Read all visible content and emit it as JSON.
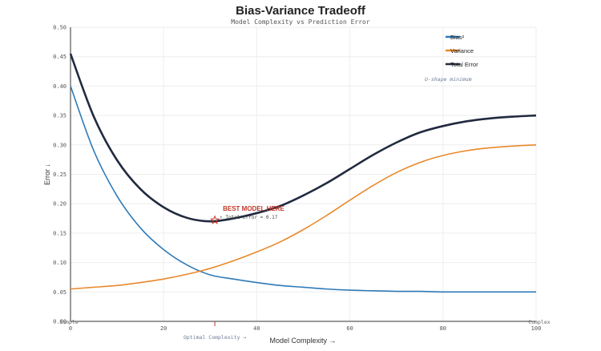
{
  "chart_data": {
    "type": "line",
    "title": "Bias-Variance Tradeoff",
    "subtitle": "Model Complexity vs Prediction Error",
    "xlabel": "Model Complexity →",
    "ylabel": "Error ↓",
    "xlim": [
      0,
      100
    ],
    "ylim": [
      0,
      0.5
    ],
    "xticks": [
      0,
      20,
      40,
      60,
      80,
      100
    ],
    "yticks": [
      0.0,
      0.05,
      0.1,
      0.15,
      0.2,
      0.25,
      0.3,
      0.35,
      0.4,
      0.45,
      0.5
    ],
    "xtick_labels": [
      "0",
      "20",
      "40",
      "60",
      "80",
      "100"
    ],
    "ytick_labels": [
      "0.00",
      "0.05",
      "0.10",
      "0.15",
      "0.20",
      "0.25",
      "0.30",
      "0.35",
      "0.40",
      "0.45",
      "0.50"
    ],
    "grid": true,
    "legend_position": "top-right",
    "series": [
      {
        "name": "Bias²",
        "color": "#2e7ab8",
        "x": [
          0,
          5,
          10,
          15,
          20,
          25,
          30,
          35,
          40,
          45,
          50,
          55,
          60,
          65,
          70,
          75,
          80,
          85,
          90,
          95,
          100
        ],
        "y": [
          0.4,
          0.29,
          0.213,
          0.159,
          0.122,
          0.096,
          0.079,
          0.072,
          0.066,
          0.061,
          0.058,
          0.055,
          0.053,
          0.052,
          0.051,
          0.051,
          0.05,
          0.05,
          0.05,
          0.05,
          0.05
        ]
      },
      {
        "name": "Variance",
        "color": "#e8892b",
        "x": [
          0,
          5,
          10,
          15,
          20,
          25,
          30,
          35,
          40,
          45,
          50,
          55,
          60,
          65,
          70,
          75,
          80,
          85,
          90,
          95,
          100
        ],
        "y": [
          0.055,
          0.058,
          0.061,
          0.066,
          0.072,
          0.08,
          0.09,
          0.103,
          0.118,
          0.135,
          0.156,
          0.18,
          0.206,
          0.231,
          0.253,
          0.27,
          0.282,
          0.29,
          0.295,
          0.298,
          0.3
        ]
      },
      {
        "name": "Total Error",
        "color": "#222a40",
        "x": [
          0,
          5,
          10,
          15,
          20,
          25,
          30,
          35,
          40,
          45,
          50,
          55,
          60,
          65,
          70,
          75,
          80,
          85,
          90,
          95,
          100
        ],
        "y": [
          0.455,
          0.348,
          0.274,
          0.225,
          0.194,
          0.176,
          0.17,
          0.175,
          0.184,
          0.196,
          0.214,
          0.235,
          0.259,
          0.283,
          0.304,
          0.321,
          0.332,
          0.34,
          0.345,
          0.348,
          0.35
        ]
      }
    ],
    "annotations": {
      "best_label": "BEST MODEL HERE",
      "best_sub": "↑ Total Error = 0.17",
      "best_x": 31,
      "best_y": 0.172,
      "ushape": "U-shape minimum",
      "optimal": "Optimal Complexity →",
      "simple": "Simple",
      "complex": "Complex"
    }
  }
}
